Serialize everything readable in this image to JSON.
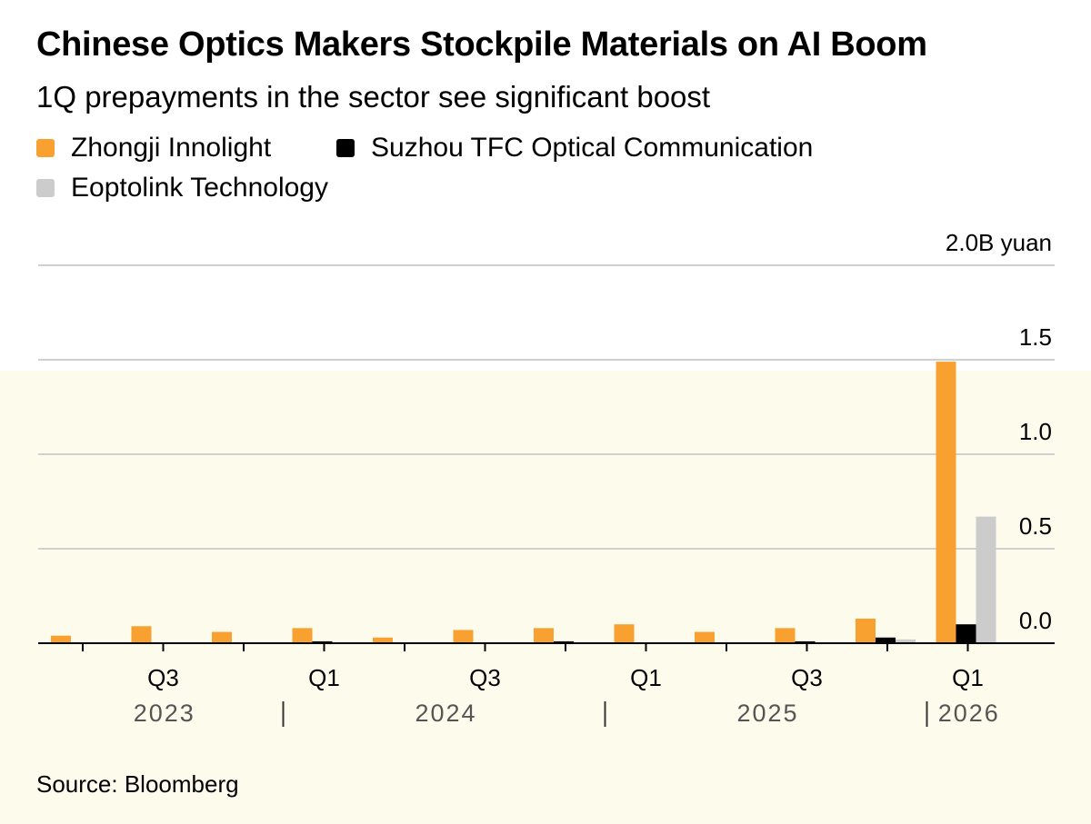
{
  "header": {
    "title": "Chinese Optics Makers Stockpile Materials on AI Boom",
    "subtitle": "1Q prepayments in the sector see significant boost"
  },
  "footer": {
    "source": "Source: Bloomberg"
  },
  "colors": {
    "zhongji": "#f9a130",
    "suzhou": "#000000",
    "eoptolink": "#cccccc",
    "gridline": "#d0d0d0",
    "axis": "#000000"
  },
  "chart_data": {
    "type": "bar",
    "title": "Chinese Optics Makers Stockpile Materials on AI Boom",
    "subtitle": "1Q prepayments in the sector see significant boost",
    "y_unit": "2.0B yuan",
    "ylim": [
      0,
      2.0
    ],
    "y_ticks": [
      0.0,
      0.5,
      1.0,
      1.5,
      2.0
    ],
    "y_tick_labels": [
      "0.0",
      "0.5",
      "1.0",
      "1.5",
      "2.0B yuan"
    ],
    "grid": true,
    "legend_position": "top-left",
    "quarters": [
      "Q2 2023",
      "Q3 2023",
      "Q4 2023",
      "Q1 2024",
      "Q2 2024",
      "Q3 2024",
      "Q4 2024",
      "Q1 2025",
      "Q2 2025",
      "Q3 2025",
      "Q4 2025",
      "Q1 2026"
    ],
    "x_tick_labels": [
      {
        "label": "Q3",
        "quarter_index": 1
      },
      {
        "label": "Q1",
        "quarter_index": 3
      },
      {
        "label": "Q3",
        "quarter_index": 5
      },
      {
        "label": "Q1",
        "quarter_index": 7
      },
      {
        "label": "Q3",
        "quarter_index": 9
      },
      {
        "label": "Q1",
        "quarter_index": 11
      }
    ],
    "year_labels": [
      {
        "label": "2023",
        "from": 0,
        "to": 2
      },
      {
        "label": "2024",
        "from": 3,
        "to": 6
      },
      {
        "label": "2025",
        "from": 7,
        "to": 10
      },
      {
        "label": "2026",
        "from": 11,
        "to": 11
      }
    ],
    "series": [
      {
        "name": "Zhongji Innolight",
        "color": "#f9a130",
        "values": [
          0.04,
          0.09,
          0.06,
          0.08,
          0.03,
          0.07,
          0.08,
          0.1,
          0.06,
          0.08,
          0.13,
          1.49
        ]
      },
      {
        "name": "Suzhou TFC Optical Communication",
        "color": "#000000",
        "values": [
          0.002,
          0.002,
          0.002,
          0.01,
          0.004,
          0.004,
          0.01,
          0.004,
          0.004,
          0.01,
          0.03,
          0.1
        ]
      },
      {
        "name": "Eoptolink Technology",
        "color": "#cccccc",
        "values": [
          0.004,
          0.004,
          0.004,
          0.004,
          0.004,
          0.004,
          0.004,
          0.004,
          0.004,
          0.004,
          0.02,
          0.67
        ]
      }
    ]
  }
}
